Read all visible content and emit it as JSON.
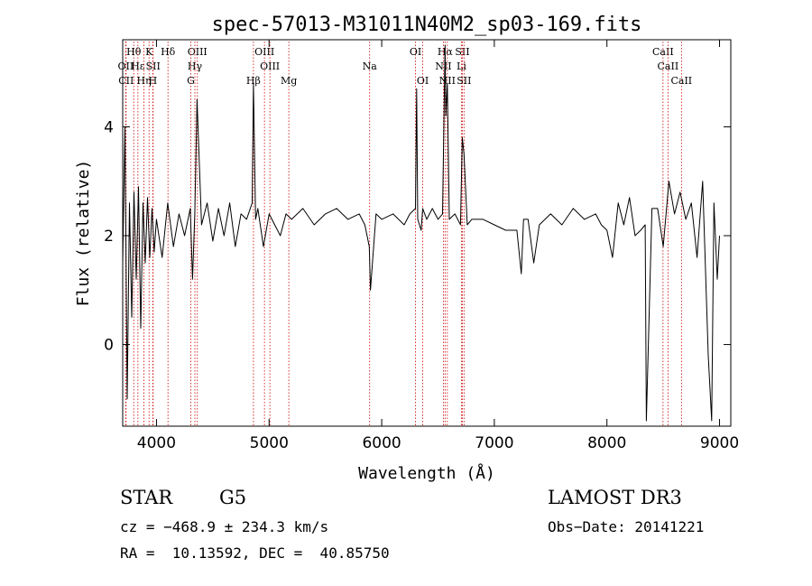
{
  "chart_data": {
    "type": "line",
    "title": "spec-57013-M31011N40M2_sp03-169.fits",
    "xlabel": "Wavelength (Å)",
    "ylabel": "Flux (relative)",
    "xlim": [
      3700,
      9100
    ],
    "ylim": [
      -1.5,
      5.6
    ],
    "xticks": [
      4000,
      5000,
      6000,
      7000,
      8000,
      9000
    ],
    "yticks": [
      0,
      2,
      4
    ],
    "grid": false,
    "line_color": "#000000",
    "marker_color": "#cc0000",
    "spectrum": {
      "x": [
        3700,
        3720,
        3740,
        3760,
        3780,
        3800,
        3820,
        3840,
        3860,
        3880,
        3900,
        3920,
        3940,
        3960,
        3980,
        4000,
        4050,
        4100,
        4150,
        4200,
        4250,
        4300,
        4320,
        4340,
        4360,
        4400,
        4450,
        4500,
        4550,
        4600,
        4650,
        4700,
        4750,
        4800,
        4850,
        4861,
        4880,
        4900,
        4950,
        5000,
        5050,
        5100,
        5150,
        5200,
        5300,
        5400,
        5500,
        5600,
        5700,
        5800,
        5850,
        5890,
        5900,
        5950,
        6000,
        6100,
        6200,
        6250,
        6300,
        6310,
        6320,
        6350,
        6364,
        6400,
        6450,
        6500,
        6540,
        6548,
        6563,
        6570,
        6583,
        6600,
        6650,
        6700,
        6716,
        6731,
        6760,
        6800,
        6900,
        7000,
        7100,
        7200,
        7240,
        7260,
        7300,
        7350,
        7400,
        7500,
        7600,
        7700,
        7800,
        7900,
        7950,
        8000,
        8050,
        8100,
        8150,
        8200,
        8250,
        8300,
        8340,
        8350,
        8400,
        8450,
        8500,
        8550,
        8600,
        8650,
        8700,
        8750,
        8800,
        8850,
        8900,
        8930,
        8950,
        8980,
        9000
      ],
      "y": [
        1.5,
        4.0,
        -1.0,
        2.6,
        0.5,
        2.8,
        1.2,
        2.9,
        0.3,
        2.6,
        1.5,
        2.7,
        1.6,
        2.5,
        1.7,
        2.3,
        1.6,
        2.6,
        1.8,
        2.4,
        2.0,
        2.5,
        1.2,
        2.4,
        4.5,
        2.2,
        2.6,
        1.9,
        2.5,
        2.0,
        2.6,
        1.8,
        2.4,
        2.3,
        2.6,
        4.8,
        2.3,
        2.5,
        1.8,
        2.4,
        2.2,
        2.0,
        2.4,
        2.3,
        2.5,
        2.2,
        2.4,
        2.5,
        2.3,
        2.4,
        2.2,
        1.8,
        1.0,
        2.4,
        2.3,
        2.4,
        2.2,
        2.4,
        2.5,
        4.7,
        2.3,
        2.1,
        2.5,
        2.3,
        2.5,
        2.3,
        2.4,
        3.5,
        5.5,
        4.2,
        4.8,
        2.3,
        2.4,
        2.2,
        3.8,
        3.5,
        2.2,
        2.3,
        2.3,
        2.2,
        2.1,
        2.1,
        1.3,
        2.3,
        2.3,
        1.5,
        2.2,
        2.4,
        2.2,
        2.5,
        2.3,
        2.4,
        2.2,
        2.1,
        1.6,
        2.6,
        2.2,
        2.7,
        2.0,
        2.1,
        2.2,
        -1.4,
        2.5,
        2.5,
        1.8,
        3.0,
        2.4,
        2.8,
        2.3,
        2.6,
        1.6,
        3.0,
        -0.2,
        -1.4,
        2.6,
        1.2,
        2.0
      ]
    },
    "lines": [
      {
        "label": "Hθ",
        "wave": 3798,
        "row": 0
      },
      {
        "label": "OII",
        "wave": 3727,
        "row": 1
      },
      {
        "label": "CII",
        "wave": 3730,
        "row": 2
      },
      {
        "label": "Hε",
        "wave": 3835,
        "row": 1
      },
      {
        "label": "Hη",
        "wave": 3889,
        "row": 2
      },
      {
        "label": "K",
        "wave": 3934,
        "row": 0
      },
      {
        "label": "SII",
        "wave": 3970,
        "row": 1
      },
      {
        "label": "H",
        "wave": 3968,
        "row": 2
      },
      {
        "label": "Hδ",
        "wave": 4102,
        "row": 0
      },
      {
        "label": "OIII",
        "wave": 4363,
        "row": 0
      },
      {
        "label": "Hγ",
        "wave": 4341,
        "row": 1
      },
      {
        "label": "G",
        "wave": 4305,
        "row": 2
      },
      {
        "label": "Hβ",
        "wave": 4861,
        "row": 2
      },
      {
        "label": "OIII",
        "wave": 4959,
        "row": 0
      },
      {
        "label": "OIII",
        "wave": 5007,
        "row": 1
      },
      {
        "label": "Mg",
        "wave": 5175,
        "row": 2
      },
      {
        "label": "Na",
        "wave": 5893,
        "row": 1
      },
      {
        "label": "OI",
        "wave": 6300,
        "row": 0
      },
      {
        "label": "OI",
        "wave": 6364,
        "row": 2
      },
      {
        "label": "Hα",
        "wave": 6563,
        "row": 0
      },
      {
        "label": "NII",
        "wave": 6548,
        "row": 1
      },
      {
        "label": "NII",
        "wave": 6583,
        "row": 2
      },
      {
        "label": "SII",
        "wave": 6716,
        "row": 0
      },
      {
        "label": "Li",
        "wave": 6708,
        "row": 1
      },
      {
        "label": "SII",
        "wave": 6731,
        "row": 2
      },
      {
        "label": "CaII",
        "wave": 8498,
        "row": 0
      },
      {
        "label": "CaII",
        "wave": 8542,
        "row": 1
      },
      {
        "label": "CaII",
        "wave": 8662,
        "row": 2
      }
    ]
  },
  "info": {
    "class": "STAR",
    "subclass": "G5",
    "survey": "LAMOST DR3",
    "cz": "cz = −468.9 ± 234.3 km/s",
    "obs_date": "Obs−Date: 20141221",
    "radec": "RA =  10.13592, DEC =  40.85750"
  }
}
